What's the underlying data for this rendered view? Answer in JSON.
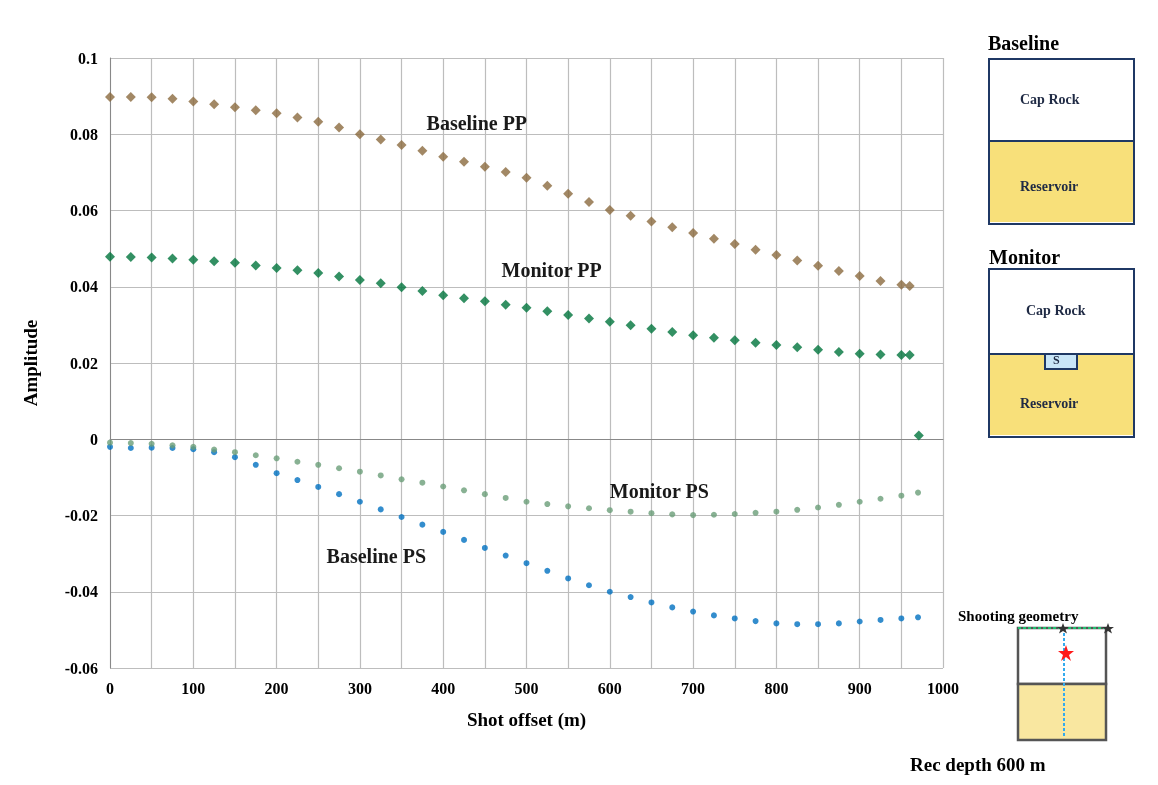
{
  "chart_data": {
    "type": "scatter",
    "xlabel": "Shot offset (m)",
    "ylabel": "Amplitude",
    "xlim": [
      0,
      1000
    ],
    "xticks": [
      0,
      {
        "value": 50,
        "label": null
      },
      100,
      {
        "value": 150,
        "label": null
      },
      200,
      {
        "value": 250,
        "label": null
      },
      300,
      {
        "value": 350,
        "label": null
      },
      400,
      {
        "value": 450,
        "label": null
      },
      500,
      {
        "value": 550,
        "label": null
      },
      600,
      {
        "value": 650,
        "label": null
      },
      700,
      {
        "value": 750,
        "label": null
      },
      800,
      {
        "value": 850,
        "label": null
      },
      900,
      {
        "value": 950,
        "label": null
      },
      1000
    ],
    "ylim": [
      -0.06,
      0.1
    ],
    "yticks": [
      -0.06,
      -0.04,
      -0.02,
      0,
      0.02,
      0.04,
      0.06,
      0.08,
      0.1
    ],
    "grid": true,
    "legend": false,
    "series": [
      {
        "name": "Baseline PP",
        "color": "#8b6a3e",
        "marker": "diamond",
        "x": [
          0,
          25,
          50,
          75,
          100,
          125,
          150,
          175,
          200,
          225,
          250,
          275,
          300,
          325,
          350,
          375,
          400,
          425,
          450,
          475,
          500,
          525,
          550,
          575,
          600,
          625,
          650,
          675,
          700,
          725,
          750,
          775,
          800,
          825,
          850,
          875,
          900,
          925,
          950,
          960
        ],
        "values": [
          0.0898,
          0.0898,
          0.0897,
          0.0893,
          0.0886,
          0.0879,
          0.0871,
          0.0863,
          0.0855,
          0.0844,
          0.0833,
          0.0818,
          0.08,
          0.0786,
          0.0772,
          0.0757,
          0.0741,
          0.0728,
          0.0715,
          0.0701,
          0.0686,
          0.0665,
          0.0644,
          0.0622,
          0.0601,
          0.0586,
          0.0571,
          0.0556,
          0.0541,
          0.0526,
          0.0512,
          0.0497,
          0.0483,
          0.0469,
          0.0455,
          0.0441,
          0.0428,
          0.0415,
          0.0405,
          0.0402
        ]
      },
      {
        "name": "Monitor PP",
        "color": "#00743c",
        "marker": "diamond",
        "x": [
          0,
          25,
          50,
          75,
          100,
          125,
          150,
          175,
          200,
          225,
          250,
          275,
          300,
          325,
          350,
          375,
          400,
          425,
          450,
          475,
          500,
          525,
          550,
          575,
          600,
          625,
          650,
          675,
          700,
          725,
          750,
          775,
          800,
          825,
          850,
          875,
          900,
          925,
          950,
          960,
          971
        ],
        "values": [
          0.0479,
          0.0478,
          0.0477,
          0.0474,
          0.0471,
          0.0467,
          0.0463,
          0.0456,
          0.0449,
          0.0443,
          0.0436,
          0.0427,
          0.0418,
          0.0409,
          0.0399,
          0.0389,
          0.0378,
          0.037,
          0.0362,
          0.0353,
          0.0345,
          0.0336,
          0.0326,
          0.0317,
          0.0308,
          0.0299,
          0.029,
          0.0281,
          0.0273,
          0.0266,
          0.026,
          0.0253,
          0.0247,
          0.0241,
          0.0235,
          0.0229,
          0.0224,
          0.0222,
          0.0221,
          0.0221,
          0.001
        ]
      },
      {
        "name": "Monitor PS",
        "color": "#6a9e78",
        "marker": "circle",
        "x": [
          0,
          25,
          50,
          75,
          100,
          125,
          150,
          175,
          200,
          225,
          250,
          275,
          300,
          325,
          350,
          375,
          400,
          425,
          450,
          475,
          500,
          525,
          550,
          575,
          600,
          625,
          650,
          675,
          700,
          725,
          750,
          775,
          800,
          825,
          850,
          875,
          900,
          925,
          950,
          970
        ],
        "values": [
          -0.0009,
          -0.001,
          -0.0012,
          -0.0016,
          -0.002,
          -0.0027,
          -0.0034,
          -0.0042,
          -0.005,
          -0.0059,
          -0.0067,
          -0.0076,
          -0.0085,
          -0.0095,
          -0.0105,
          -0.0114,
          -0.0124,
          -0.0134,
          -0.0144,
          -0.0154,
          -0.0164,
          -0.017,
          -0.0176,
          -0.0181,
          -0.0186,
          -0.019,
          -0.0194,
          -0.0197,
          -0.0199,
          -0.0198,
          -0.0196,
          -0.0193,
          -0.019,
          -0.0185,
          -0.0179,
          -0.0172,
          -0.0164,
          -0.0156,
          -0.0148,
          -0.014
        ]
      },
      {
        "name": "Baseline PS",
        "color": "#0070c0",
        "marker": "circle",
        "x": [
          0,
          25,
          50,
          75,
          100,
          125,
          150,
          175,
          200,
          225,
          250,
          275,
          300,
          325,
          350,
          375,
          400,
          425,
          450,
          475,
          500,
          525,
          550,
          575,
          600,
          625,
          650,
          675,
          700,
          725,
          750,
          775,
          800,
          825,
          850,
          875,
          900,
          925,
          950,
          970
        ],
        "values": [
          -0.002,
          -0.0023,
          -0.0022,
          -0.0023,
          -0.0026,
          -0.0034,
          -0.0047,
          -0.0067,
          -0.0089,
          -0.0107,
          -0.0125,
          -0.0144,
          -0.0164,
          -0.0184,
          -0.0204,
          -0.0224,
          -0.0243,
          -0.0264,
          -0.0285,
          -0.0305,
          -0.0325,
          -0.0345,
          -0.0365,
          -0.0383,
          -0.04,
          -0.0414,
          -0.0428,
          -0.0441,
          -0.0452,
          -0.0462,
          -0.047,
          -0.0477,
          -0.0483,
          -0.0485,
          -0.0485,
          -0.0483,
          -0.0478,
          -0.0474,
          -0.047,
          -0.0467
        ]
      }
    ],
    "annotations": [
      "Baseline",
      "Cap Rock",
      "Reservoir",
      "Monitor",
      "Cap Rock",
      "S",
      "Reservoir",
      "Shooting geometry",
      "Rec depth 600 m"
    ]
  }
}
